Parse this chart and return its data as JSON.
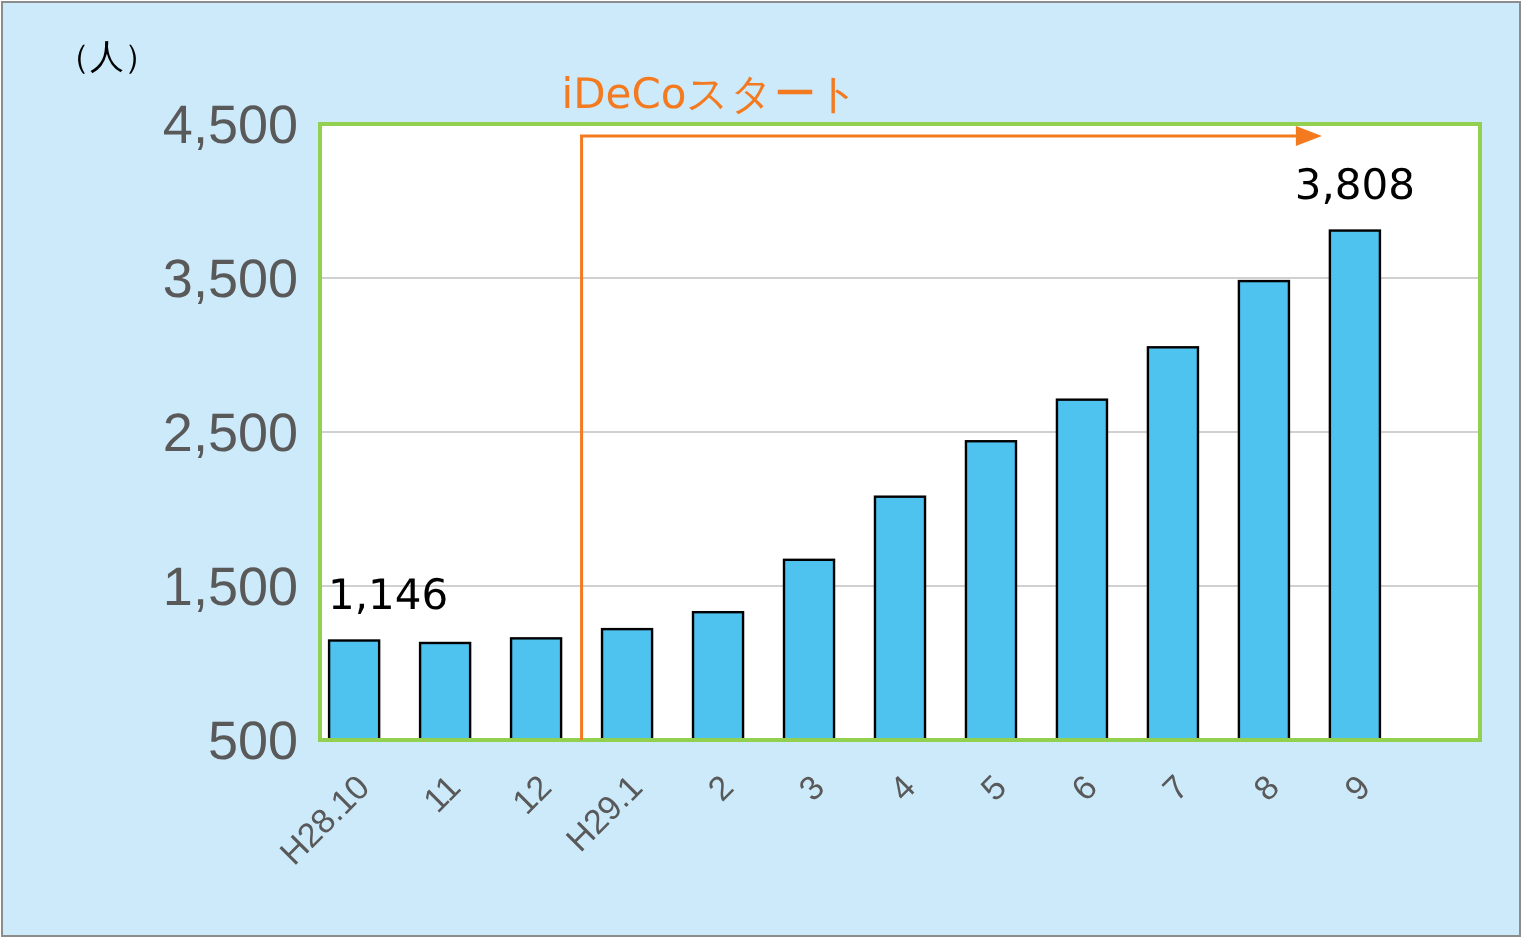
{
  "chart_data": {
    "type": "bar",
    "ylabel": "（人）",
    "categories": [
      "H28.10",
      "11",
      "12",
      "H29.1",
      "2",
      "3",
      "4",
      "5",
      "6",
      "7",
      "8",
      "9"
    ],
    "values": [
      1146,
      1130,
      1160,
      1220,
      1330,
      1670,
      2080,
      2440,
      2710,
      3050,
      3480,
      3808
    ],
    "value_labels": [
      "1,146",
      null,
      null,
      null,
      null,
      null,
      null,
      null,
      null,
      null,
      null,
      "3,808"
    ],
    "color": "#4fc3f0",
    "ylim": [
      500,
      4500
    ],
    "yticks": [
      {
        "value": 500,
        "label": "500"
      },
      {
        "value": 1500,
        "label": "1,500"
      },
      {
        "value": 2500,
        "label": "2,500"
      },
      {
        "value": 3500,
        "label": "3,500"
      },
      {
        "value": 4500,
        "label": "4,500"
      }
    ],
    "grid": "y",
    "annotations": [
      "iDeCoスタート"
    ]
  }
}
